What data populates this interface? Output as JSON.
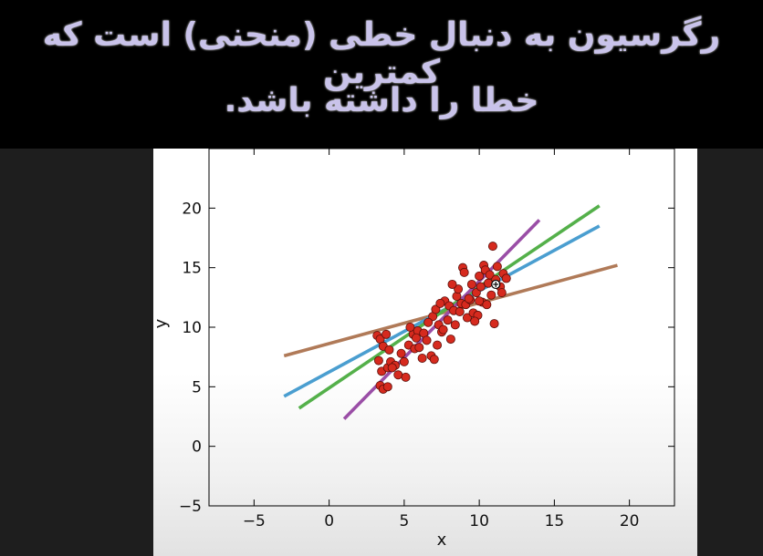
{
  "caption": {
    "line1": "رگرسیون به دنبال خطی (منحنی) است که کمترین",
    "line2": "خطا را داشته باشد."
  },
  "chart_data": {
    "type": "scatter",
    "xlabel": "x",
    "ylabel": "y",
    "xlim": [
      -8,
      23
    ],
    "ylim": [
      -5,
      25
    ],
    "xticks": [
      -5,
      0,
      5,
      10,
      15,
      20
    ],
    "yticks": [
      -5,
      0,
      5,
      10,
      15,
      20
    ],
    "xtick_labels": [
      "−5",
      "0",
      "5",
      "10",
      "15",
      "20"
    ],
    "ytick_labels": [
      "−5",
      "0",
      "5",
      "10",
      "15",
      "20"
    ],
    "grid": false,
    "points_color": "#d62a1e",
    "points": [
      [
        3.2,
        9.3
      ],
      [
        3.4,
        9.0
      ],
      [
        3.6,
        8.4
      ],
      [
        3.8,
        9.4
      ],
      [
        3.3,
        7.2
      ],
      [
        3.5,
        6.3
      ],
      [
        3.9,
        6.6
      ],
      [
        4.1,
        7.1
      ],
      [
        3.4,
        5.1
      ],
      [
        3.6,
        4.8
      ],
      [
        3.9,
        5.0
      ],
      [
        4.4,
        6.8
      ],
      [
        4.6,
        6.0
      ],
      [
        4.2,
        6.6
      ],
      [
        5.0,
        7.1
      ],
      [
        5.1,
        5.8
      ],
      [
        5.3,
        8.5
      ],
      [
        5.6,
        9.4
      ],
      [
        5.7,
        8.2
      ],
      [
        6.0,
        8.3
      ],
      [
        6.2,
        7.4
      ],
      [
        5.4,
        10.0
      ],
      [
        5.9,
        9.7
      ],
      [
        6.3,
        9.5
      ],
      [
        6.5,
        8.9
      ],
      [
        6.8,
        7.6
      ],
      [
        6.9,
        10.9
      ],
      [
        7.1,
        11.5
      ],
      [
        7.0,
        7.3
      ],
      [
        7.3,
        10.2
      ],
      [
        7.5,
        9.6
      ],
      [
        7.7,
        12.2
      ],
      [
        7.9,
        10.6
      ],
      [
        8.0,
        11.8
      ],
      [
        8.1,
        9.0
      ],
      [
        8.3,
        11.4
      ],
      [
        8.4,
        10.2
      ],
      [
        8.5,
        12.6
      ],
      [
        8.6,
        13.2
      ],
      [
        8.8,
        12.0
      ],
      [
        8.9,
        15.0
      ],
      [
        9.0,
        14.6
      ],
      [
        9.1,
        11.9
      ],
      [
        9.2,
        10.8
      ],
      [
        9.4,
        12.3
      ],
      [
        9.5,
        13.6
      ],
      [
        9.6,
        11.2
      ],
      [
        9.8,
        12.9
      ],
      [
        9.9,
        11.0
      ],
      [
        10.0,
        14.3
      ],
      [
        10.1,
        13.4
      ],
      [
        10.2,
        12.1
      ],
      [
        10.3,
        15.2
      ],
      [
        10.4,
        14.8
      ],
      [
        10.5,
        11.9
      ],
      [
        10.6,
        13.7
      ],
      [
        10.7,
        14.4
      ],
      [
        10.8,
        12.7
      ],
      [
        10.9,
        16.8
      ],
      [
        11.0,
        10.3
      ],
      [
        11.1,
        14.0
      ],
      [
        11.2,
        15.1
      ],
      [
        11.4,
        13.4
      ],
      [
        11.5,
        12.9
      ],
      [
        11.6,
        14.5
      ],
      [
        11.8,
        14.1
      ],
      [
        7.2,
        8.5
      ],
      [
        7.6,
        9.8
      ],
      [
        8.7,
        11.3
      ],
      [
        9.3,
        12.4
      ],
      [
        6.6,
        10.4
      ],
      [
        5.8,
        9.1
      ],
      [
        4.8,
        7.8
      ],
      [
        4.0,
        8.1
      ],
      [
        9.7,
        10.5
      ],
      [
        10.0,
        12.2
      ],
      [
        8.2,
        13.6
      ],
      [
        7.4,
        12.0
      ]
    ],
    "series": [
      {
        "color": "#b07a58",
        "x": [
          -3,
          19.2
        ],
        "y": [
          7.6,
          15.2
        ]
      },
      {
        "color": "#4a9ed0",
        "x": [
          -3,
          18
        ],
        "y": [
          4.2,
          18.5
        ]
      },
      {
        "color": "#54b04a",
        "x": [
          -2,
          18
        ],
        "y": [
          3.2,
          20.2
        ]
      },
      {
        "color": "#9a4ea6",
        "x": [
          1,
          14
        ],
        "y": [
          2.3,
          19.0
        ]
      }
    ],
    "highlight_point": [
      11.1,
      13.6
    ]
  }
}
